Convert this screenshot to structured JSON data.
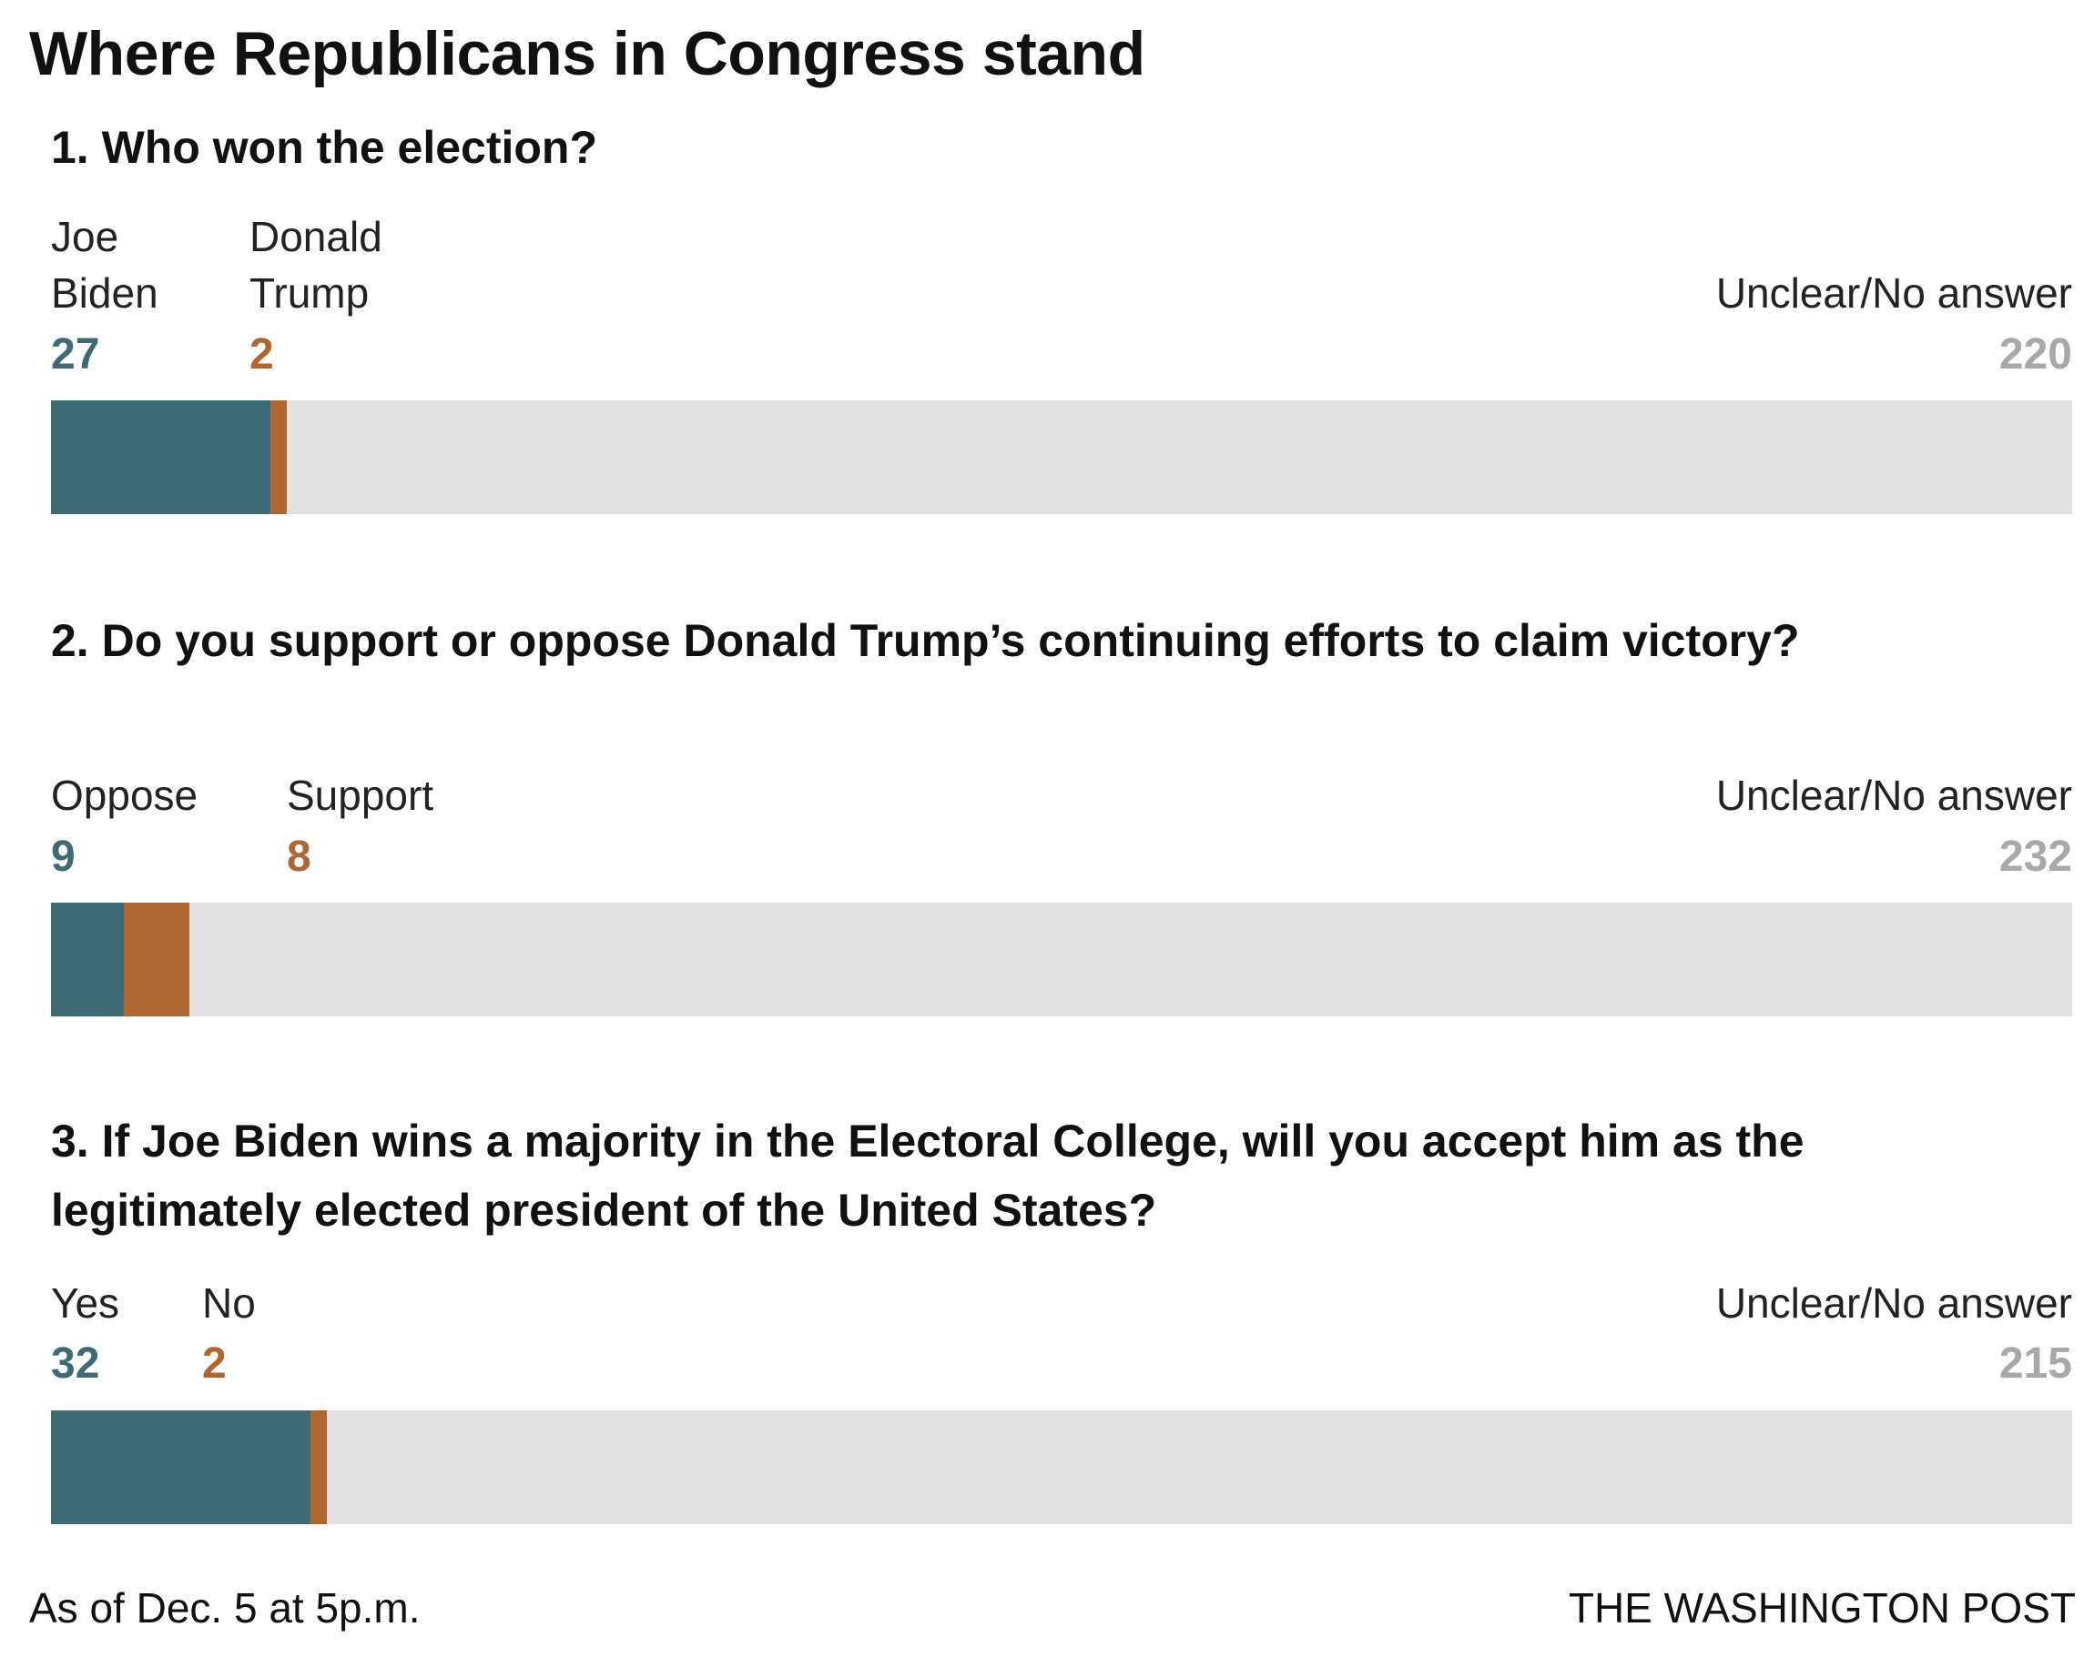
{
  "title": "Where Republicans in Congress stand",
  "footer": {
    "note": "As of Dec. 5 at 5p.m.",
    "source": "THE WASHINGTON POST"
  },
  "colors": {
    "first": "#3d6b75",
    "second": "#b0662f",
    "rest": "#e1e1e1",
    "rest_label": "#a8a8a8"
  },
  "chart_data": [
    {
      "type": "bar",
      "stacked": true,
      "title": "1. Who won the election?",
      "categories": [
        "Joe Biden",
        "Donald Trump",
        "Unclear/No answer"
      ],
      "labels": [
        [
          "Joe",
          "Biden"
        ],
        [
          "Donald",
          "Trump"
        ],
        [
          "",
          "Unclear/No answer"
        ]
      ],
      "values": [
        27,
        2,
        220
      ]
    },
    {
      "type": "bar",
      "stacked": true,
      "title": "2. Do you support or oppose Donald Trump’s continuing efforts to claim victory?",
      "categories": [
        "Oppose",
        "Support",
        "Unclear/No answer"
      ],
      "labels": [
        [
          "Oppose"
        ],
        [
          "Support"
        ],
        [
          "Unclear/No answer"
        ]
      ],
      "values": [
        9,
        8,
        232
      ]
    },
    {
      "type": "bar",
      "stacked": true,
      "title_lines": [
        "3. If Joe Biden wins a majority in the Electoral College, will you accept him as the",
        "legitimately elected president of the United States?"
      ],
      "categories": [
        "Yes",
        "No",
        "Unclear/No answer"
      ],
      "labels": [
        [
          "Yes"
        ],
        [
          "No"
        ],
        [
          "Unclear/No answer"
        ]
      ],
      "values": [
        32,
        2,
        215
      ]
    }
  ]
}
